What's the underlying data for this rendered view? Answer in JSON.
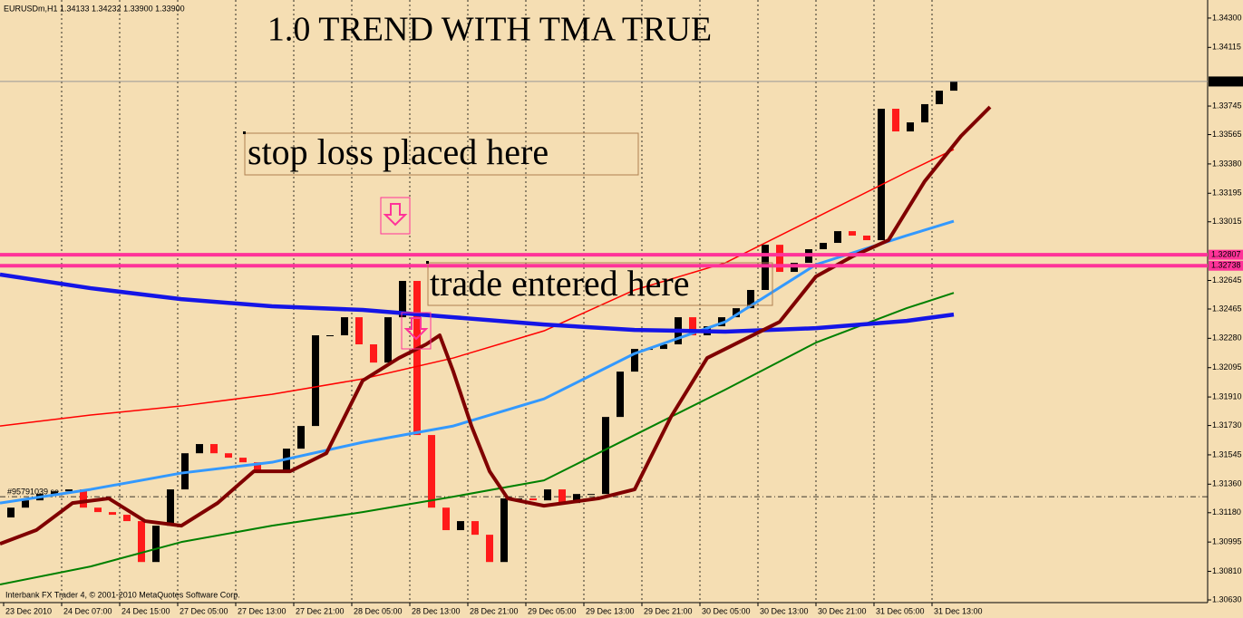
{
  "chart_data": {
    "type": "candlestick",
    "title": "1.0 TREND WITH TMA TRUE",
    "header": "EURUSDm,H1  1.34133 1.34232 1.33900 1.33900",
    "footer": "Interbank FX Trader 4, © 2001-2010 MetaQuotes Software Corp.",
    "annotations": [
      "stop loss placed here",
      "trade entered here"
    ],
    "xlim": [
      -0.5,
      166
    ],
    "ylim": [
      1.30613,
      1.34414
    ],
    "grid": true,
    "up_color": "#000000",
    "down_color": "#ff1a1a",
    "xticks": [
      {
        "value": 0,
        "label": "23 Dec 2010"
      },
      {
        "value": 8,
        "label": "24 Dec 07:00"
      },
      {
        "value": 16,
        "label": "24 Dec 15:00"
      },
      {
        "value": 24,
        "label": "27 Dec 05:00"
      },
      {
        "value": 32,
        "label": "27 Dec 13:00"
      },
      {
        "value": 40,
        "label": "27 Dec 21:00"
      },
      {
        "value": 48,
        "label": "28 Dec 05:00"
      },
      {
        "value": 56,
        "label": "28 Dec 13:00"
      },
      {
        "value": 64,
        "label": "28 Dec 21:00"
      },
      {
        "value": 72,
        "label": "29 Dec 05:00"
      },
      {
        "value": 80,
        "label": "29 Dec 13:00"
      },
      {
        "value": 88,
        "label": "29 Dec 21:00"
      },
      {
        "value": 96,
        "label": "30 Dec 05:00"
      },
      {
        "value": 104,
        "label": "30 Dec 13:00"
      },
      {
        "value": 112,
        "label": "30 Dec 21:00"
      },
      {
        "value": 120,
        "label": "31 Dec 05:00"
      },
      {
        "value": 128,
        "label": "31 Dec 13:00"
      }
    ],
    "yticks": [
      {
        "value": 1.343,
        "label": "1.34300"
      },
      1.34115,
      1.33745,
      1.33565,
      {
        "value": 1.3338,
        "label": "1.33380"
      },
      1.33195,
      1.33015,
      1.32645,
      1.32465,
      {
        "value": 1.3228,
        "label": "1.32280"
      },
      1.32095,
      {
        "value": 1.3191,
        "label": "1.31910"
      },
      {
        "value": 1.3173,
        "label": "1.31730"
      },
      1.31545,
      {
        "value": 1.3136,
        "label": "1.31360"
      },
      {
        "value": 1.3118,
        "label": "1.31180"
      },
      1.30995,
      {
        "value": 1.3081,
        "label": "1.30810"
      },
      {
        "value": 1.3063,
        "label": "1.30630"
      }
    ],
    "x": [
      1,
      3,
      5,
      7,
      9,
      11,
      13,
      15,
      17,
      19,
      21,
      23,
      25,
      27,
      29,
      31,
      33,
      35,
      37,
      39,
      41,
      43,
      45,
      47,
      49,
      51,
      53,
      55,
      57,
      59,
      61,
      63,
      65,
      67,
      69,
      71,
      73,
      75,
      77,
      79,
      81,
      83,
      85,
      87,
      89,
      91,
      93,
      95,
      97,
      99,
      101,
      103,
      105,
      107,
      109,
      111,
      113,
      115,
      117,
      119,
      121,
      123,
      125,
      127,
      129,
      131
    ],
    "open": [
      1.3115,
      1.31212,
      1.31258,
      1.31298,
      1.31315,
      1.31327,
      1.31212,
      1.31184,
      1.31167,
      1.31127,
      1.30869,
      1.31098,
      1.31327,
      1.31555,
      1.31613,
      1.31555,
      1.31527,
      1.31498,
      1.31441,
      1.31441,
      1.31584,
      1.31727,
      1.32299,
      1.32299,
      1.32413,
      1.32242,
      1.32127,
      1.32413,
      1.32642,
      1.3167,
      1.31212,
      1.3107,
      1.31127,
      1.31041,
      1.30869,
      1.3127,
      1.3127,
      1.31258,
      1.31327,
      1.31241,
      1.31298,
      1.31298,
      1.31784,
      1.3207,
      1.32213,
      1.32213,
      1.32242,
      1.32413,
      1.32299,
      1.32356,
      1.32413,
      1.3247,
      1.32585,
      1.3287,
      1.32699,
      1.32756,
      1.32842,
      1.32882,
      1.32956,
      1.32928,
      1.32899,
      1.33728,
      1.33585,
      1.33642,
      1.33757,
      1.33842
    ],
    "close": [
      1.31212,
      1.31258,
      1.31298,
      1.31315,
      1.31327,
      1.31212,
      1.31184,
      1.31167,
      1.31127,
      1.30869,
      1.31098,
      1.31327,
      1.31555,
      1.31613,
      1.31555,
      1.31527,
      1.31498,
      1.31441,
      1.31441,
      1.31584,
      1.31727,
      1.32299,
      1.32299,
      1.32413,
      1.32242,
      1.32127,
      1.32413,
      1.32642,
      1.3167,
      1.31212,
      1.3107,
      1.31127,
      1.31041,
      1.30869,
      1.3127,
      1.3127,
      1.31258,
      1.31327,
      1.31241,
      1.31298,
      1.31298,
      1.31784,
      1.3207,
      1.32213,
      1.32213,
      1.32242,
      1.32413,
      1.32299,
      1.32356,
      1.32413,
      1.3247,
      1.32585,
      1.3287,
      1.32699,
      1.32756,
      1.32842,
      1.32882,
      1.32956,
      1.32928,
      1.32899,
      1.33728,
      1.33585,
      1.33642,
      1.33757,
      1.33842,
      1.339
    ],
    "lines": [
      {
        "color": "#008000",
        "width": 2,
        "x": [
          -0.5,
          12,
          24.5,
          37,
          49.5,
          62,
          74.5,
          87,
          99.5,
          112,
          124.5,
          131
        ],
        "values": [
          1.30727,
          1.30841,
          1.30995,
          1.31098,
          1.31184,
          1.31281,
          1.31384,
          1.3167,
          1.31956,
          1.32253,
          1.3247,
          1.32567
        ]
      },
      {
        "color": "#ff0000",
        "width": 1.5,
        "x": [
          -0.5,
          12,
          24.5,
          37,
          49.5,
          62,
          74.5,
          87,
          99.5,
          112,
          124.5,
          131
        ],
        "values": [
          1.31727,
          1.31796,
          1.31853,
          1.31927,
          1.32024,
          1.32156,
          1.32327,
          1.32585,
          1.32756,
          1.33042,
          1.33328,
          1.33471
        ]
      },
      {
        "color": "#3399ff",
        "width": 3,
        "x": [
          -0.5,
          12,
          24.5,
          37,
          49.5,
          62,
          74.5,
          87,
          99.5,
          112,
          124.5,
          131
        ],
        "values": [
          1.31241,
          1.31327,
          1.3143,
          1.31498,
          1.31624,
          1.31727,
          1.31898,
          1.32184,
          1.32384,
          1.32745,
          1.32928,
          1.33019
        ]
      },
      {
        "color": "#1515e6",
        "width": 4.5,
        "x": [
          -0.5,
          12,
          24.5,
          37,
          49.5,
          62,
          74.5,
          87,
          99.5,
          112,
          124.5,
          131
        ],
        "values": [
          1.32682,
          1.32596,
          1.32527,
          1.32482,
          1.32459,
          1.32413,
          1.32367,
          1.32333,
          1.32322,
          1.32344,
          1.3239,
          1.3243
        ]
      },
      {
        "color": "#800000",
        "width": 4,
        "x": [
          -0.5,
          4.5,
          9.5,
          14.5,
          19.5,
          24.5,
          29.5,
          34.5,
          39.5,
          44.5,
          49.5,
          54.5,
          58.25,
          60.125,
          62,
          64.5,
          67,
          69.5,
          74.5,
          82,
          87,
          92,
          97,
          102,
          107,
          112,
          117,
          122,
          127,
          132,
          136
        ],
        "values": [
          1.30984,
          1.3107,
          1.31241,
          1.3127,
          1.31127,
          1.31098,
          1.31241,
          1.31441,
          1.31441,
          1.31555,
          1.32013,
          1.32156,
          1.32242,
          1.32299,
          1.3207,
          1.31727,
          1.31441,
          1.3127,
          1.31224,
          1.3127,
          1.31327,
          1.31784,
          1.32156,
          1.3227,
          1.32384,
          1.3267,
          1.32796,
          1.32899,
          1.33271,
          1.33556,
          1.33739
        ]
      }
    ],
    "price_lines": [
      {
        "value": 1.339,
        "label": "1.33900",
        "color": "#000000"
      },
      {
        "value": 1.32807,
        "label": "1.32807",
        "color": "#ff3399"
      },
      {
        "value": 1.32738,
        "label": "1.32738",
        "color": "#ff3399"
      }
    ],
    "order_line": {
      "value": 1.31281,
      "label": "#95791039 se"
    }
  }
}
